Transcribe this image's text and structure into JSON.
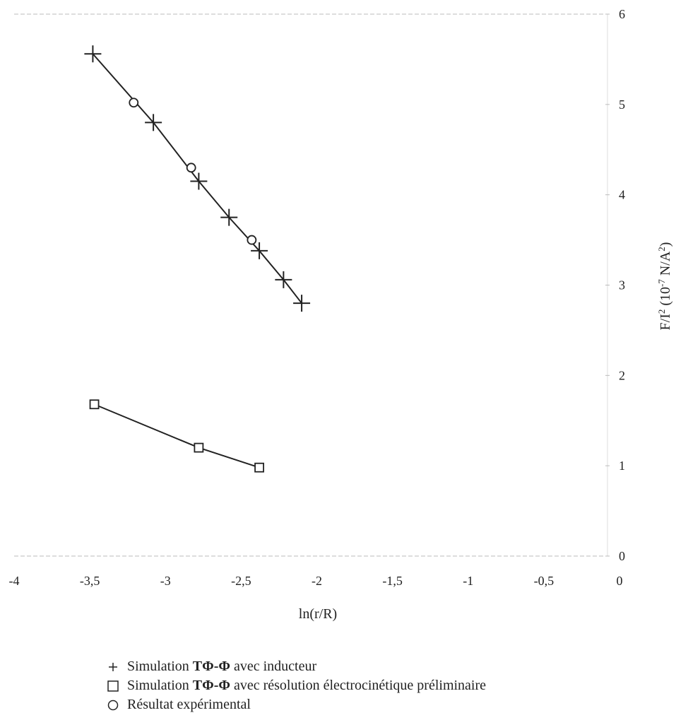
{
  "chart_data": {
    "type": "scatter",
    "xlabel": "ln(r/R)",
    "ylabel": {
      "pre": "F/I",
      "sup1": "2",
      "mid": " (10",
      "sup2": "-7",
      "post": " N/A",
      "sup3": "2",
      "end": ")"
    },
    "xlim": [
      -4,
      0
    ],
    "ylim": [
      0,
      6
    ],
    "x_ticks": [
      "-4",
      "-3,5",
      "-3",
      "-2,5",
      "-2",
      "-1,5",
      "-1",
      "-0,5",
      "0"
    ],
    "x_tick_values": [
      -4,
      -3.5,
      -3,
      -2.5,
      -2,
      -1.5,
      -1,
      -0.5,
      0
    ],
    "y_ticks": [
      "0",
      "1",
      "2",
      "3",
      "4",
      "5",
      "6"
    ],
    "y_tick_values": [
      0,
      1,
      2,
      3,
      4,
      5,
      6
    ],
    "y_axis_side": "right",
    "grid": false,
    "legend_position": "bottom",
    "series": [
      {
        "name_pre": "Simulation ",
        "name_bold": "TΦ-Φ",
        "name_post": " avec inducteur",
        "marker": "plus",
        "line": true,
        "x": [
          -3.48,
          -3.08,
          -2.78,
          -2.58,
          -2.38,
          -2.22,
          -2.1
        ],
        "y": [
          5.56,
          4.8,
          4.15,
          3.75,
          3.38,
          3.06,
          2.8
        ]
      },
      {
        "name_pre": "Simulation ",
        "name_bold": "TΦ-Φ",
        "name_post": " avec résolution électrocinétique préliminaire",
        "marker": "square",
        "line": true,
        "x": [
          -3.47,
          -2.78,
          -2.38
        ],
        "y": [
          1.68,
          1.2,
          0.98
        ]
      },
      {
        "name_pre": "Résultat expérimental",
        "name_bold": "",
        "name_post": "",
        "marker": "circle",
        "line": false,
        "x": [
          -3.21,
          -2.83,
          -2.43
        ],
        "y": [
          5.02,
          4.3,
          3.5
        ]
      }
    ]
  }
}
